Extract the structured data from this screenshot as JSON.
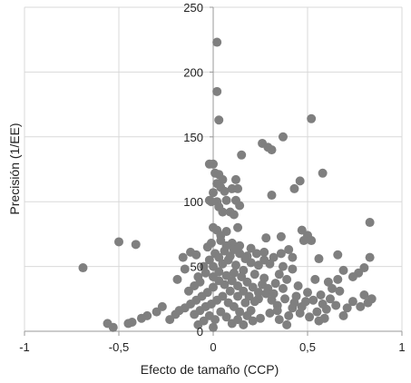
{
  "chart_data": {
    "type": "scatter",
    "xlabel": "Efecto de tamaño (CCP)",
    "ylabel": "Precisión (1/EE)",
    "xlim": [
      -1,
      1
    ],
    "ylim": [
      0,
      250
    ],
    "x_ticks": [
      -1,
      -0.5,
      0,
      0.5,
      1
    ],
    "x_tick_labels": [
      "-1",
      "-0,5",
      "0",
      "0,5",
      "1"
    ],
    "y_ticks": [
      0,
      50,
      100,
      150,
      200,
      250
    ],
    "y_tick_labels": [
      "0",
      "50",
      "100",
      "150",
      "200",
      "250"
    ],
    "grid": true,
    "marker_color": "#7f7f7f",
    "grid_color": "#d9d9d9",
    "series": [
      {
        "points": [
          [
            0.02,
            223
          ],
          [
            0.02,
            185
          ],
          [
            0.03,
            163
          ],
          [
            0.52,
            164
          ],
          [
            0.37,
            150
          ],
          [
            0.26,
            145
          ],
          [
            0.29,
            142
          ],
          [
            0.31,
            140
          ],
          [
            0.15,
            136
          ],
          [
            0.58,
            122
          ],
          [
            0.0,
            129
          ],
          [
            -0.02,
            129
          ],
          [
            0.01,
            122
          ],
          [
            0.03,
            121
          ],
          [
            0.05,
            117
          ],
          [
            0.12,
            117
          ],
          [
            0.02,
            114
          ],
          [
            0.04,
            111
          ],
          [
            0.1,
            110
          ],
          [
            0.13,
            110
          ],
          [
            0.46,
            116
          ],
          [
            0.43,
            110
          ],
          [
            0.31,
            105
          ],
          [
            0.0,
            107
          ],
          [
            0.06,
            108
          ],
          [
            -0.02,
            101
          ],
          [
            -0.01,
            100
          ],
          [
            0.02,
            100
          ],
          [
            0.07,
            101
          ],
          [
            0.12,
            101
          ],
          [
            0.14,
            97
          ],
          [
            0.03,
            96
          ],
          [
            0.05,
            92
          ],
          [
            0.09,
            92
          ],
          [
            0.11,
            90
          ],
          [
            0.83,
            84
          ],
          [
            0.47,
            78
          ],
          [
            0.5,
            74
          ],
          [
            0.52,
            70
          ],
          [
            0.48,
            70
          ],
          [
            0.36,
            73
          ],
          [
            0.28,
            72
          ],
          [
            0.13,
            80
          ],
          [
            0.0,
            80
          ],
          [
            0.02,
            78
          ],
          [
            0.07,
            77
          ],
          [
            0.04,
            74
          ],
          [
            -0.5,
            69
          ],
          [
            -0.41,
            67
          ],
          [
            -0.69,
            49
          ],
          [
            0.66,
            59
          ],
          [
            0.83,
            57
          ],
          [
            0.56,
            56
          ],
          [
            0.42,
            57
          ],
          [
            0.27,
            61
          ],
          [
            0.3,
            52
          ],
          [
            0.37,
            50
          ],
          [
            0.42,
            48
          ],
          [
            0.77,
            45
          ],
          [
            0.8,
            49
          ],
          [
            0.69,
            47
          ],
          [
            0.23,
            60
          ],
          [
            0.18,
            58
          ],
          [
            -0.03,
            65
          ],
          [
            -0.01,
            68
          ],
          [
            0.04,
            70
          ],
          [
            0.1,
            68
          ],
          [
            0.14,
            66
          ],
          [
            0.2,
            64
          ],
          [
            -0.12,
            61
          ],
          [
            -0.09,
            59
          ],
          [
            -0.16,
            57
          ],
          [
            -0.15,
            48
          ],
          [
            -0.19,
            40
          ],
          [
            -0.08,
            42
          ],
          [
            -0.04,
            45
          ],
          [
            0.0,
            50
          ],
          [
            0.05,
            52
          ],
          [
            0.08,
            55
          ],
          [
            0.12,
            51
          ],
          [
            0.16,
            47
          ],
          [
            0.22,
            44
          ],
          [
            0.27,
            41
          ],
          [
            0.33,
            37
          ],
          [
            0.37,
            33
          ],
          [
            0.45,
            35
          ],
          [
            0.5,
            30
          ],
          [
            0.57,
            28
          ],
          [
            0.61,
            38
          ],
          [
            0.66,
            40
          ],
          [
            0.67,
            31
          ],
          [
            0.74,
            42
          ],
          [
            0.8,
            28
          ],
          [
            0.84,
            25
          ],
          [
            0.82,
            22
          ],
          [
            0.78,
            19
          ],
          [
            0.71,
            18
          ],
          [
            0.65,
            20
          ],
          [
            0.6,
            17
          ],
          [
            0.55,
            15
          ],
          [
            0.51,
            11
          ],
          [
            0.56,
            8
          ],
          [
            0.46,
            14
          ],
          [
            0.42,
            18
          ],
          [
            0.4,
            12
          ],
          [
            0.35,
            9
          ],
          [
            0.3,
            14
          ],
          [
            0.25,
            10
          ],
          [
            0.2,
            16
          ],
          [
            0.17,
            22
          ],
          [
            0.13,
            27
          ],
          [
            0.09,
            31
          ],
          [
            0.06,
            36
          ],
          [
            0.03,
            39
          ],
          [
            0.0,
            34
          ],
          [
            -0.03,
            30
          ],
          [
            -0.06,
            27
          ],
          [
            -0.09,
            24
          ],
          [
            -0.12,
            21
          ],
          [
            -0.15,
            18
          ],
          [
            -0.18,
            16
          ],
          [
            -0.2,
            13
          ],
          [
            -0.23,
            9
          ],
          [
            -0.27,
            19
          ],
          [
            -0.3,
            15
          ],
          [
            -0.35,
            12
          ],
          [
            -0.38,
            10
          ],
          [
            -0.43,
            7
          ],
          [
            -0.45,
            6
          ],
          [
            -0.56,
            6
          ],
          [
            -0.53,
            3
          ],
          [
            -0.1,
            13
          ],
          [
            -0.07,
            16
          ],
          [
            -0.04,
            19
          ],
          [
            -0.01,
            21
          ],
          [
            0.02,
            24
          ],
          [
            0.05,
            27
          ],
          [
            0.08,
            22
          ],
          [
            0.11,
            19
          ],
          [
            0.14,
            15
          ],
          [
            0.18,
            12
          ],
          [
            0.21,
            8
          ],
          [
            0.24,
            25
          ],
          [
            0.28,
            29
          ],
          [
            0.31,
            24
          ],
          [
            0.34,
            20
          ],
          [
            0.38,
            25
          ],
          [
            0.43,
            22
          ],
          [
            0.47,
            19
          ],
          [
            0.53,
            24
          ],
          [
            0.58,
            21
          ],
          [
            0.62,
            25
          ],
          [
            0.01,
            60
          ],
          [
            0.03,
            57
          ],
          [
            0.06,
            62
          ],
          [
            0.09,
            58
          ],
          [
            0.11,
            45
          ],
          [
            0.15,
            42
          ],
          [
            0.18,
            38
          ],
          [
            0.21,
            34
          ],
          [
            0.24,
            30
          ],
          [
            -0.02,
            55
          ],
          [
            -0.05,
            50
          ],
          [
            -0.07,
            38
          ],
          [
            -0.1,
            35
          ],
          [
            -0.13,
            31
          ],
          [
            0.0,
            42
          ],
          [
            0.03,
            46
          ],
          [
            0.07,
            43
          ],
          [
            0.1,
            39
          ],
          [
            0.13,
            35
          ],
          [
            0.16,
            31
          ],
          [
            0.19,
            27
          ],
          [
            0.22,
            23
          ],
          [
            -0.02,
            12
          ],
          [
            0.01,
            9
          ],
          [
            0.04,
            15
          ],
          [
            0.07,
            11
          ],
          [
            0.1,
            6
          ],
          [
            0.13,
            9
          ],
          [
            0.16,
            5
          ],
          [
            -0.05,
            8
          ],
          [
            -0.08,
            5
          ],
          [
            0.0,
            3
          ],
          [
            0.26,
            36
          ],
          [
            0.29,
            33
          ],
          [
            0.32,
            29
          ],
          [
            0.35,
            44
          ],
          [
            0.39,
            40
          ],
          [
            0.27,
            55
          ],
          [
            0.24,
            51
          ],
          [
            0.2,
            53
          ],
          [
            0.17,
            56
          ],
          [
            0.14,
            60
          ],
          [
            0.11,
            63
          ],
          [
            0.07,
            66
          ],
          [
            0.34,
            16
          ],
          [
            0.39,
            5
          ],
          [
            0.44,
            27
          ],
          [
            0.49,
            23
          ],
          [
            0.59,
            10
          ],
          [
            0.69,
            12
          ],
          [
            0.74,
            23
          ],
          [
            0.63,
            33
          ],
          [
            0.54,
            40
          ],
          [
            0.32,
            57
          ],
          [
            0.36,
            60
          ],
          [
            0.4,
            63
          ]
        ]
      }
    ]
  }
}
